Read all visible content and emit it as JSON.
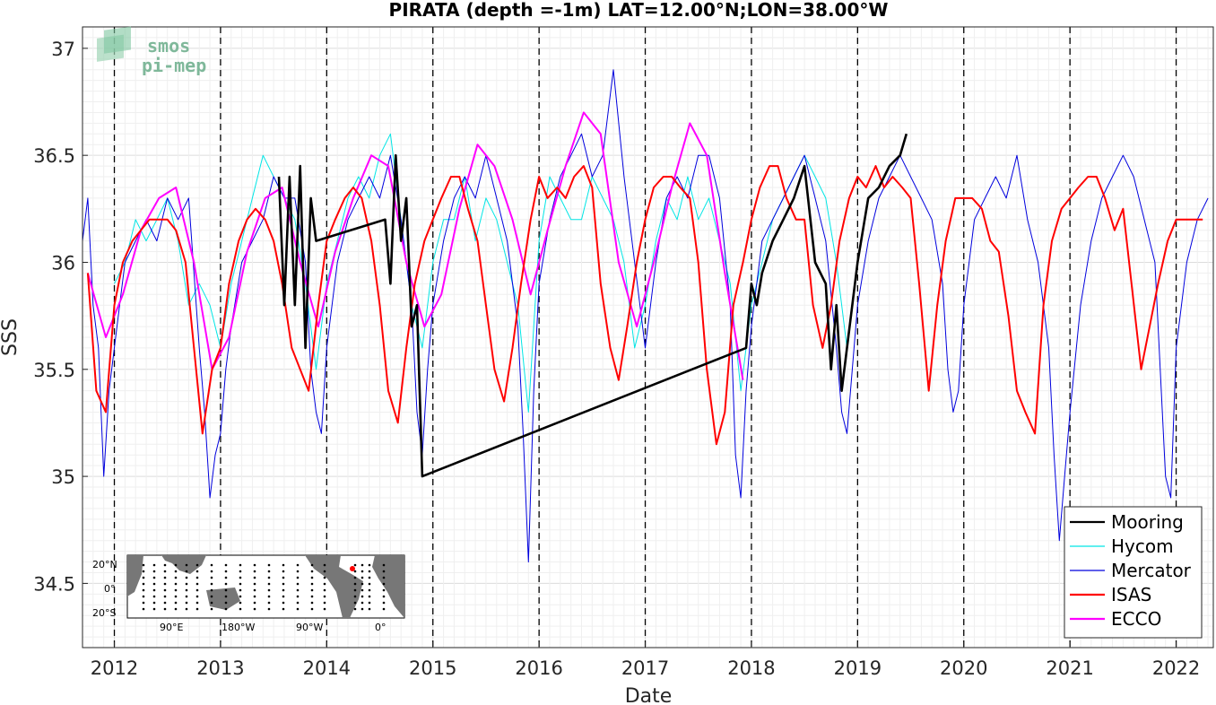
{
  "chart_data": {
    "type": "line",
    "title": "PIRATA (depth =-1m) LAT=12.00°N;LON=38.00°W",
    "xlabel": "Date",
    "ylabel": "SSS",
    "xlim": [
      2011.7,
      2022.35
    ],
    "ylim": [
      34.2,
      37.1
    ],
    "x_ticks": [
      "2012",
      "2013",
      "2014",
      "2015",
      "2016",
      "2017",
      "2018",
      "2019",
      "2020",
      "2021",
      "2022"
    ],
    "y_ticks": [
      "34.5",
      "35",
      "35.5",
      "36",
      "36.5",
      "37"
    ],
    "grid": "on (major and minor)",
    "year_separators": [
      2012,
      2013,
      2014,
      2015,
      2016,
      2017,
      2018,
      2019,
      2020,
      2021,
      2022
    ],
    "legend_position": "bottom-right",
    "series": [
      {
        "name": "Mooring",
        "color": "#000000",
        "x": [
          2013.55,
          2013.6,
          2013.65,
          2013.7,
          2013.75,
          2013.8,
          2013.85,
          2013.9,
          2014.55,
          2014.6,
          2014.65,
          2014.7,
          2014.75,
          2014.8,
          2014.85,
          2014.9,
          2017.95,
          2018.0,
          2018.05,
          2018.1,
          2018.2,
          2018.3,
          2018.4,
          2018.5,
          2018.6,
          2018.7,
          2018.75,
          2018.8,
          2018.85,
          2018.9,
          2019.0,
          2019.1,
          2019.2,
          2019.3,
          2019.4,
          2019.46
        ],
        "y": [
          36.4,
          35.8,
          36.4,
          35.8,
          36.45,
          35.6,
          36.3,
          36.1,
          36.2,
          35.9,
          36.5,
          36.1,
          36.3,
          35.7,
          35.8,
          35.0,
          35.6,
          35.9,
          35.8,
          35.95,
          36.1,
          36.2,
          36.3,
          36.45,
          36.0,
          35.9,
          35.5,
          35.8,
          35.4,
          35.6,
          36.0,
          36.3,
          36.35,
          36.45,
          36.5,
          36.6
        ]
      },
      {
        "name": "Hycom",
        "color": "#00e5e5",
        "x": [
          2012.0,
          2012.1,
          2012.2,
          2012.3,
          2012.4,
          2012.5,
          2012.6,
          2012.7,
          2012.8,
          2012.9,
          2013.0,
          2013.1,
          2013.2,
          2013.3,
          2013.4,
          2013.5,
          2013.6,
          2013.7,
          2013.8,
          2013.9,
          2014.0,
          2014.1,
          2014.2,
          2014.3,
          2014.4,
          2014.5,
          2014.6,
          2014.7,
          2014.8,
          2014.9,
          2015.0,
          2015.1,
          2015.2,
          2015.3,
          2015.4,
          2015.5,
          2015.6,
          2015.7,
          2015.8,
          2015.9,
          2016.0,
          2016.1,
          2016.2,
          2016.3,
          2016.4,
          2016.5,
          2016.6,
          2016.7,
          2016.8,
          2016.9,
          2017.0,
          2017.1,
          2017.2,
          2017.3,
          2017.4,
          2017.5,
          2017.6,
          2017.7,
          2017.8,
          2017.9,
          2018.0,
          2018.1,
          2018.2,
          2018.3,
          2018.4,
          2018.5,
          2018.6,
          2018.7,
          2018.8,
          2018.9
        ],
        "y": [
          35.9,
          36.0,
          36.2,
          36.1,
          36.2,
          36.3,
          36.1,
          35.8,
          35.9,
          35.8,
          35.6,
          35.9,
          36.1,
          36.3,
          36.5,
          36.4,
          36.3,
          36.2,
          35.9,
          35.5,
          35.9,
          36.1,
          36.3,
          36.4,
          36.3,
          36.5,
          36.6,
          36.2,
          35.8,
          35.6,
          36.0,
          36.2,
          36.2,
          36.4,
          36.1,
          36.3,
          36.2,
          36.0,
          35.8,
          35.3,
          36.1,
          36.4,
          36.3,
          36.2,
          36.2,
          36.4,
          36.3,
          36.2,
          36.0,
          35.6,
          35.8,
          36.1,
          36.3,
          36.2,
          36.4,
          36.2,
          36.3,
          36.1,
          35.9,
          35.4,
          35.8,
          36.0,
          36.2,
          36.3,
          36.4,
          36.5,
          36.4,
          36.3,
          36.0,
          35.6
        ]
      },
      {
        "name": "Mercator",
        "color": "#0000dd",
        "x": [
          2011.7,
          2011.75,
          2011.8,
          2011.85,
          2011.9,
          2011.95,
          2012.0,
          2012.05,
          2012.1,
          2012.2,
          2012.3,
          2012.4,
          2012.5,
          2012.6,
          2012.7,
          2012.8,
          2012.85,
          2012.9,
          2012.95,
          2013.0,
          2013.05,
          2013.1,
          2013.2,
          2013.3,
          2013.4,
          2013.5,
          2013.6,
          2013.7,
          2013.8,
          2013.85,
          2013.9,
          2013.95,
          2014.0,
          2014.1,
          2014.2,
          2014.3,
          2014.4,
          2014.5,
          2014.6,
          2014.7,
          2014.8,
          2014.85,
          2014.9,
          2014.95,
          2015.0,
          2015.1,
          2015.2,
          2015.3,
          2015.4,
          2015.5,
          2015.6,
          2015.7,
          2015.8,
          2015.85,
          2015.9,
          2015.95,
          2016.0,
          2016.1,
          2016.2,
          2016.3,
          2016.4,
          2016.5,
          2016.6,
          2016.7,
          2016.8,
          2016.9,
          2017.0,
          2017.1,
          2017.2,
          2017.3,
          2017.4,
          2017.5,
          2017.6,
          2017.7,
          2017.8,
          2017.85,
          2017.9,
          2017.95,
          2018.0,
          2018.1,
          2018.2,
          2018.3,
          2018.4,
          2018.5,
          2018.6,
          2018.7,
          2018.8,
          2018.85,
          2018.9,
          2018.95,
          2019.0,
          2019.1,
          2019.2,
          2019.3,
          2019.4,
          2019.5,
          2019.6,
          2019.7,
          2019.8,
          2019.85,
          2019.9,
          2019.95,
          2020.0,
          2020.1,
          2020.2,
          2020.3,
          2020.4,
          2020.5,
          2020.6,
          2020.7,
          2020.8,
          2020.85,
          2020.9,
          2020.95,
          2021.0,
          2021.1,
          2021.2,
          2021.3,
          2021.4,
          2021.5,
          2021.6,
          2021.7,
          2021.8,
          2021.85,
          2021.9,
          2021.95,
          2022.0,
          2022.1,
          2022.2,
          2022.3
        ],
        "y": [
          36.1,
          36.3,
          35.8,
          35.6,
          35.0,
          35.4,
          35.6,
          35.8,
          36.0,
          36.1,
          36.2,
          36.1,
          36.3,
          36.2,
          36.3,
          35.6,
          35.3,
          34.9,
          35.1,
          35.2,
          35.5,
          35.7,
          36.0,
          36.1,
          36.2,
          36.4,
          36.3,
          36.3,
          36.0,
          35.5,
          35.3,
          35.2,
          35.6,
          36.0,
          36.2,
          36.3,
          36.4,
          36.3,
          36.5,
          36.2,
          35.8,
          35.3,
          35.1,
          35.5,
          35.8,
          36.1,
          36.3,
          36.4,
          36.3,
          36.5,
          36.3,
          36.1,
          35.7,
          35.2,
          34.6,
          35.4,
          35.9,
          36.2,
          36.4,
          36.5,
          36.6,
          36.4,
          36.5,
          36.9,
          36.4,
          36.0,
          35.6,
          36.0,
          36.3,
          36.4,
          36.3,
          36.5,
          36.5,
          36.3,
          35.8,
          35.1,
          34.9,
          35.4,
          35.7,
          36.1,
          36.2,
          36.3,
          36.4,
          36.5,
          36.3,
          36.1,
          35.6,
          35.3,
          35.2,
          35.5,
          35.8,
          36.1,
          36.3,
          36.4,
          36.5,
          36.4,
          36.3,
          36.2,
          35.9,
          35.5,
          35.3,
          35.4,
          35.8,
          36.2,
          36.3,
          36.4,
          36.3,
          36.5,
          36.2,
          36.0,
          35.6,
          35.1,
          34.7,
          35.0,
          35.3,
          35.8,
          36.1,
          36.3,
          36.4,
          36.5,
          36.4,
          36.2,
          36.0,
          35.5,
          35.0,
          34.9,
          35.6,
          36.0,
          36.2,
          36.3
        ]
      },
      {
        "name": "ISAS",
        "color": "#ff0000",
        "x": [
          2011.75,
          2011.83,
          2011.92,
          2012.0,
          2012.08,
          2012.17,
          2012.25,
          2012.33,
          2012.42,
          2012.5,
          2012.58,
          2012.67,
          2012.75,
          2012.83,
          2012.92,
          2013.0,
          2013.08,
          2013.17,
          2013.25,
          2013.33,
          2013.42,
          2013.5,
          2013.58,
          2013.67,
          2013.75,
          2013.83,
          2013.92,
          2014.0,
          2014.08,
          2014.17,
          2014.25,
          2014.33,
          2014.42,
          2014.5,
          2014.58,
          2014.67,
          2014.75,
          2014.83,
          2014.92,
          2015.0,
          2015.08,
          2015.17,
          2015.25,
          2015.33,
          2015.42,
          2015.5,
          2015.58,
          2015.67,
          2015.75,
          2015.83,
          2015.92,
          2016.0,
          2016.08,
          2016.17,
          2016.25,
          2016.33,
          2016.42,
          2016.5,
          2016.58,
          2016.67,
          2016.75,
          2016.83,
          2016.92,
          2017.0,
          2017.08,
          2017.17,
          2017.25,
          2017.33,
          2017.42,
          2017.5,
          2017.58,
          2017.67,
          2017.75,
          2017.83,
          2017.92,
          2018.0,
          2018.08,
          2018.17,
          2018.25,
          2018.33,
          2018.42,
          2018.5,
          2018.58,
          2018.67,
          2018.75,
          2018.83,
          2018.92,
          2019.0,
          2019.08,
          2019.17,
          2019.25,
          2019.33,
          2019.42,
          2019.5,
          2019.58,
          2019.67,
          2019.75,
          2019.83,
          2019.92,
          2020.0,
          2020.08,
          2020.17,
          2020.25,
          2020.33,
          2020.42,
          2020.5,
          2020.58,
          2020.67,
          2020.75,
          2020.83,
          2020.92,
          2021.0,
          2021.08,
          2021.17,
          2021.25,
          2021.33,
          2021.42,
          2021.5,
          2021.58,
          2021.67,
          2021.75,
          2021.83,
          2021.92,
          2022.0,
          2022.08,
          2022.17,
          2022.25
        ],
        "y": [
          35.95,
          35.4,
          35.3,
          35.8,
          36.0,
          36.1,
          36.15,
          36.2,
          36.2,
          36.2,
          36.15,
          36.0,
          35.6,
          35.2,
          35.5,
          35.6,
          35.9,
          36.1,
          36.2,
          36.25,
          36.2,
          36.1,
          35.9,
          35.6,
          35.5,
          35.4,
          35.8,
          36.1,
          36.2,
          36.3,
          36.35,
          36.3,
          36.1,
          35.8,
          35.4,
          35.25,
          35.6,
          35.9,
          36.1,
          36.2,
          36.3,
          36.4,
          36.4,
          36.25,
          36.1,
          35.8,
          35.5,
          35.35,
          35.6,
          35.9,
          36.2,
          36.4,
          36.3,
          36.35,
          36.3,
          36.4,
          36.45,
          36.35,
          35.9,
          35.6,
          35.45,
          35.7,
          36.0,
          36.2,
          36.35,
          36.4,
          36.4,
          36.35,
          36.3,
          36.0,
          35.5,
          35.15,
          35.3,
          35.8,
          36.0,
          36.2,
          36.35,
          36.45,
          36.45,
          36.3,
          36.2,
          36.2,
          35.8,
          35.6,
          35.8,
          36.1,
          36.3,
          36.4,
          36.35,
          36.45,
          36.35,
          36.4,
          36.35,
          36.3,
          35.9,
          35.4,
          35.8,
          36.1,
          36.3,
          36.3,
          36.3,
          36.25,
          36.1,
          36.05,
          35.75,
          35.4,
          35.3,
          35.2,
          35.8,
          36.1,
          36.25,
          36.3,
          36.35,
          36.4,
          36.4,
          36.3,
          36.15,
          36.25,
          35.9,
          35.5,
          35.7,
          35.9,
          36.1,
          36.2,
          36.2,
          36.2,
          36.2
        ],
        "note_x_range": "monthly"
      },
      {
        "name": "ECCO",
        "color": "#ff00ff",
        "x": [
          2011.75,
          2011.92,
          2012.08,
          2012.25,
          2012.42,
          2012.58,
          2012.75,
          2012.92,
          2013.08,
          2013.25,
          2013.42,
          2013.58,
          2013.75,
          2013.92,
          2014.08,
          2014.25,
          2014.42,
          2014.58,
          2014.75,
          2014.92,
          2015.08,
          2015.25,
          2015.42,
          2015.58,
          2015.75,
          2015.92,
          2016.08,
          2016.25,
          2016.42,
          2016.58,
          2016.75,
          2016.92,
          2017.08,
          2017.25,
          2017.42,
          2017.58,
          2017.75,
          2017.92
        ],
        "y": [
          35.95,
          35.65,
          35.85,
          36.15,
          36.3,
          36.35,
          36.0,
          35.5,
          35.65,
          36.05,
          36.3,
          36.35,
          36.0,
          35.7,
          36.05,
          36.3,
          36.5,
          36.45,
          36.0,
          35.7,
          35.85,
          36.25,
          36.55,
          36.45,
          36.2,
          35.85,
          36.15,
          36.45,
          36.7,
          36.6,
          36.0,
          35.7,
          36.0,
          36.35,
          36.65,
          36.5,
          35.95,
          35.45
        ]
      }
    ]
  },
  "logo": {
    "line1": "smos",
    "line2": "pi-mep"
  },
  "inset_map": {
    "lat_labels": [
      "20°N",
      "0°",
      "20°S"
    ],
    "lon_labels": [
      "90°E",
      "180°W",
      "90°W",
      "0°"
    ]
  }
}
